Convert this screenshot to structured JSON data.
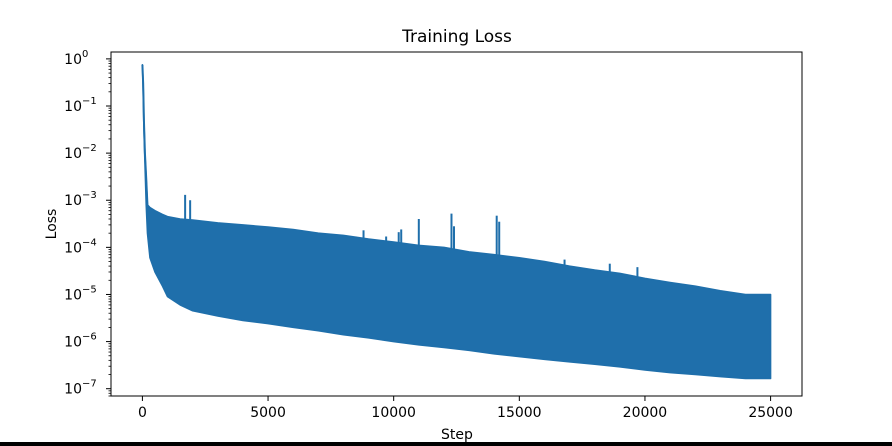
{
  "chart_data": {
    "type": "line",
    "title": "Training Loss",
    "xlabel": "Step",
    "ylabel": "Loss",
    "xlim": [
      -1250,
      26250
    ],
    "ylim": [
      7e-08,
      1.4
    ],
    "yscale": "log",
    "grid": false,
    "color": "#1f6fab",
    "x_ticks": [
      0,
      5000,
      10000,
      15000,
      20000,
      25000
    ],
    "x_tick_labels": [
      "0",
      "5000",
      "10000",
      "15000",
      "20000",
      "25000"
    ],
    "y_ticks": [
      1e-07,
      1e-06,
      1e-05,
      0.0001,
      0.001,
      0.01,
      0.1,
      1
    ],
    "y_tick_labels": [
      {
        "base": "10",
        "exp": "−7"
      },
      {
        "base": "10",
        "exp": "−6"
      },
      {
        "base": "10",
        "exp": "−5"
      },
      {
        "base": "10",
        "exp": "−4"
      },
      {
        "base": "10",
        "exp": "−3"
      },
      {
        "base": "10",
        "exp": "−2"
      },
      {
        "base": "10",
        "exp": "−1"
      },
      {
        "base": "10",
        "exp": "0"
      }
    ],
    "series": [
      {
        "x": [
          0,
          30,
          60,
          100,
          150,
          200,
          300,
          500,
          800,
          1000,
          1500,
          2000,
          3000,
          4000,
          5000,
          6000,
          7000,
          8000,
          9000,
          10000,
          11000,
          12000,
          13000,
          14000,
          15000,
          16000,
          17000,
          18000,
          19000,
          20000,
          21000,
          22000,
          23000,
          24000,
          25000
        ],
        "upper": [
          0.75,
          0.3,
          0.05,
          0.01,
          0.003,
          0.0008,
          0.0007,
          0.0006,
          0.0005,
          0.00045,
          0.0004,
          0.00038,
          0.00033,
          0.0003,
          0.00027,
          0.00024,
          0.0002,
          0.00018,
          0.00015,
          0.00013,
          0.00011,
          0.0001,
          8e-05,
          7e-05,
          6e-05,
          5e-05,
          4e-05,
          3.3e-05,
          2.8e-05,
          2.2e-05,
          1.8e-05,
          1.5e-05,
          1.2e-05,
          1e-05,
          1e-05
        ],
        "lower": [
          0.75,
          0.2,
          0.03,
          0.006,
          0.0008,
          0.0002,
          6e-05,
          3e-05,
          1.5e-05,
          9e-06,
          6e-06,
          4.5e-06,
          3.5e-06,
          2.8e-06,
          2.4e-06,
          2e-06,
          1.7e-06,
          1.4e-06,
          1.2e-06,
          1e-06,
          8.5e-07,
          7.5e-07,
          6.5e-07,
          5.5e-07,
          4.8e-07,
          4.2e-07,
          3.7e-07,
          3.3e-07,
          2.9e-07,
          2.5e-07,
          2.2e-07,
          2e-07,
          1.8e-07,
          1.65e-07,
          1.65e-07
        ]
      }
    ],
    "spikes": [
      {
        "x": 1700,
        "y": 0.0013
      },
      {
        "x": 1900,
        "y": 0.001
      },
      {
        "x": 8500,
        "y": 0.00017
      },
      {
        "x": 8800,
        "y": 0.00023
      },
      {
        "x": 9700,
        "y": 0.00017
      },
      {
        "x": 10200,
        "y": 0.00021
      },
      {
        "x": 10300,
        "y": 0.00024
      },
      {
        "x": 11000,
        "y": 0.0004
      },
      {
        "x": 12300,
        "y": 0.00052
      },
      {
        "x": 12400,
        "y": 0.00028
      },
      {
        "x": 14100,
        "y": 0.00047
      },
      {
        "x": 14200,
        "y": 0.00035
      },
      {
        "x": 16800,
        "y": 5.5e-05
      },
      {
        "x": 18600,
        "y": 4.5e-05
      },
      {
        "x": 19700,
        "y": 3.8e-05
      }
    ]
  }
}
